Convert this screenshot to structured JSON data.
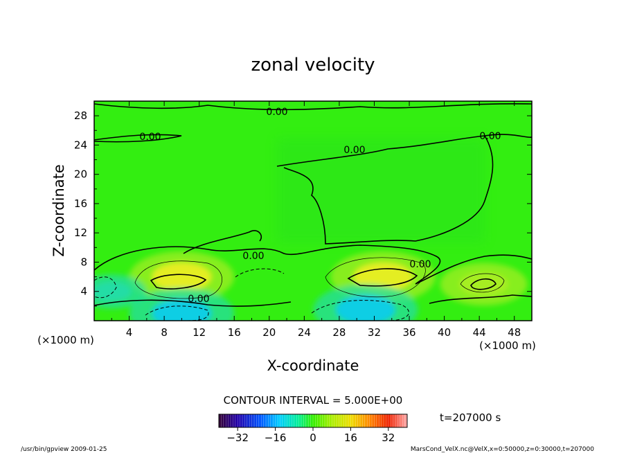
{
  "chart_data": {
    "type": "heatmap",
    "title": "zonal velocity",
    "xlabel": "X-coordinate",
    "ylabel": "Z-coordinate",
    "x_unit": "(×1000 m)",
    "z_unit": "(×1000 m)",
    "xlim": [
      0,
      50
    ],
    "ylim": [
      0,
      30
    ],
    "x_ticks": [
      "4",
      "8",
      "12",
      "16",
      "20",
      "24",
      "28",
      "32",
      "36",
      "40",
      "44",
      "48"
    ],
    "y_ticks": [
      "4",
      "8",
      "12",
      "16",
      "20",
      "24",
      "28"
    ],
    "contour_interval_label": "CONTOUR INTERVAL = 5.000E+00",
    "time_label": "t=207000 s",
    "contour_label": "0.00",
    "colorbar": {
      "ticks": [
        "−32",
        "−16",
        "0",
        "16",
        "32"
      ],
      "tick_values": [
        -32,
        -16,
        0,
        16,
        32
      ],
      "range": [
        -40,
        40
      ]
    },
    "field_features": [
      {
        "x": 10,
        "z": 6,
        "value": 12
      },
      {
        "x": 33,
        "z": 6,
        "value": 12
      },
      {
        "x": 44.5,
        "z": 5,
        "value": 10
      },
      {
        "x": 10,
        "z": 1,
        "value": -12
      },
      {
        "x": 31,
        "z": 1.5,
        "value": -12
      },
      {
        "x": 2,
        "z": 4,
        "value": -8
      }
    ]
  },
  "footer": {
    "left": "/usr/bin/gpview  2009-01-25",
    "right": "MarsCond_VelX.nc@VelX,x=0:50000,z=0:30000,t=207000"
  },
  "colors": {
    "background_field": "#33ee11",
    "positive": "#ddee22",
    "negative": "#11ddcc"
  }
}
